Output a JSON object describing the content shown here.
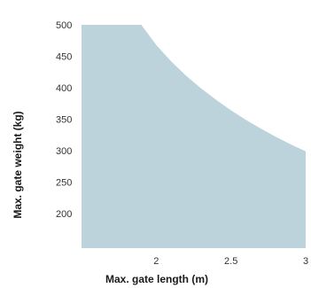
{
  "chart_data": {
    "type": "area",
    "xlabel": "Max. gate length (m)",
    "ylabel": "Max. gate weight (kg)",
    "x_ticks": [
      "2",
      "2.5",
      "3"
    ],
    "y_ticks": [
      "200",
      "250",
      "300",
      "350",
      "400",
      "450",
      "500"
    ],
    "xlim": [
      1.5,
      3.0
    ],
    "ylim": [
      145,
      500
    ],
    "grid": false,
    "legend": "none",
    "fill_color": "#bdd3db",
    "series": [
      {
        "x": [
          1.5,
          1.9,
          2.0,
          2.1,
          2.2,
          2.3,
          2.4,
          2.5,
          2.6,
          2.7,
          2.8,
          2.9,
          3.0
        ],
        "values": [
          500,
          500,
          468,
          442,
          419,
          399,
          381,
          364,
          349,
          335,
          322,
          310,
          299
        ]
      }
    ]
  }
}
